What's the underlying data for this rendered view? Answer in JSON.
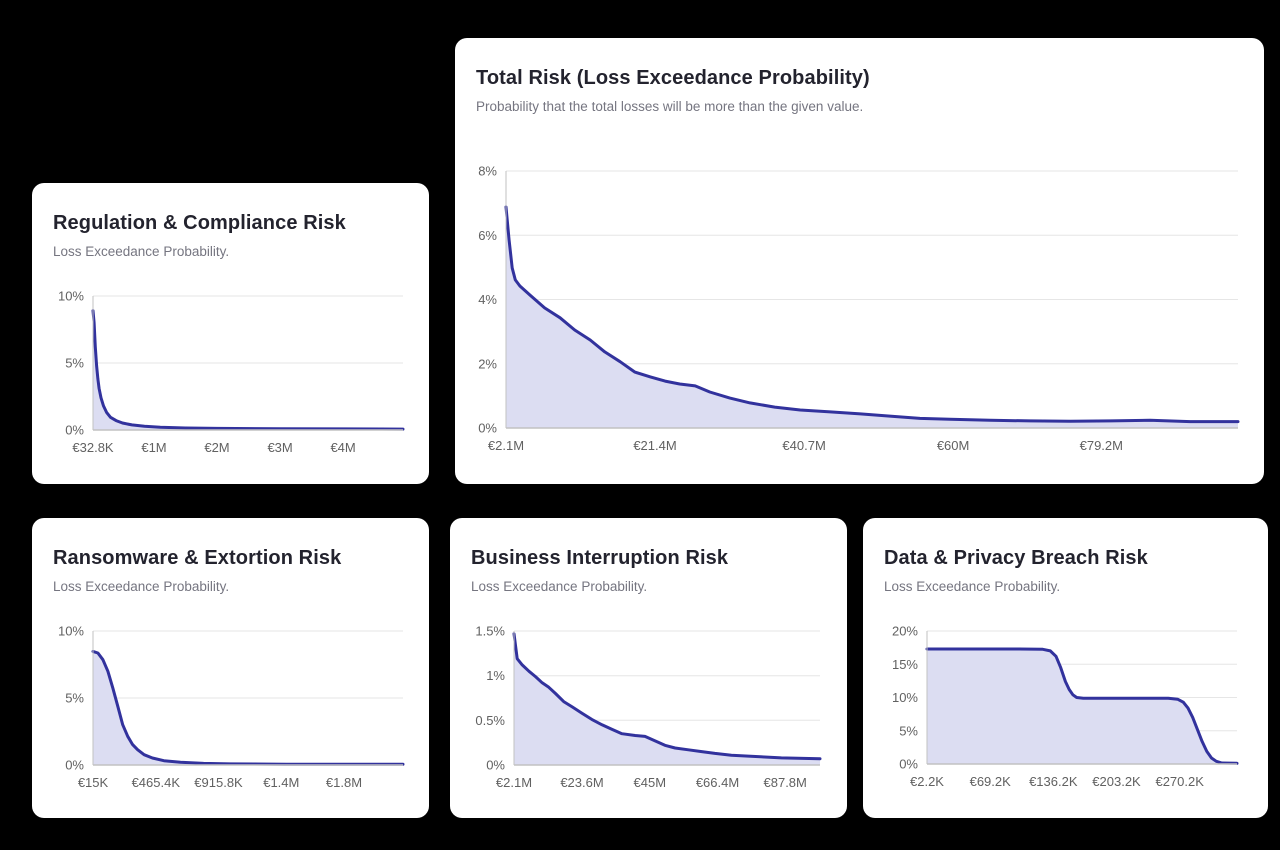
{
  "page": {
    "background": "#000000"
  },
  "theme": {
    "card_background": "#ffffff",
    "title_color": "#23232e",
    "subtitle_color": "#757580",
    "axis_label_color": "#616161",
    "grid_color": "#e6e6e6",
    "axis_line_color": "#c2c2c2",
    "line_color": "#32329d",
    "fill_color": "#dcddf2"
  },
  "chart_data": [
    {
      "id": "regulation",
      "type": "area",
      "title": "Regulation & Compliance Risk",
      "subtitle": "Loss Exceedance Probability.",
      "xlabel": "",
      "ylabel": "",
      "legend": "none",
      "grid": true,
      "xlim": [
        32800,
        4950000
      ],
      "ylim": [
        0,
        10
      ],
      "y_ticks": [
        {
          "value": 0,
          "label": "0%"
        },
        {
          "value": 5,
          "label": "5%"
        },
        {
          "value": 10,
          "label": "10%"
        }
      ],
      "x_ticks": [
        {
          "value": 32800,
          "label": "€32.8K"
        },
        {
          "value": 1000000,
          "label": "€1M"
        },
        {
          "value": 2000000,
          "label": "€2M"
        },
        {
          "value": 3000000,
          "label": "€3M"
        },
        {
          "value": 4000000,
          "label": "€4M"
        }
      ],
      "points": [
        [
          32800,
          8.9
        ],
        [
          50000,
          8.0
        ],
        [
          70000,
          6.2
        ],
        [
          90000,
          4.8
        ],
        [
          110000,
          3.8
        ],
        [
          130000,
          3.1
        ],
        [
          160000,
          2.4
        ],
        [
          200000,
          1.8
        ],
        [
          250000,
          1.3
        ],
        [
          310000,
          0.95
        ],
        [
          400000,
          0.7
        ],
        [
          500000,
          0.52
        ],
        [
          650000,
          0.38
        ],
        [
          850000,
          0.28
        ],
        [
          1100000,
          0.2
        ],
        [
          1500000,
          0.15
        ],
        [
          2000000,
          0.12
        ],
        [
          3000000,
          0.09
        ],
        [
          4000000,
          0.08
        ],
        [
          4950000,
          0.07
        ]
      ]
    },
    {
      "id": "total",
      "type": "area",
      "title": "Total Risk (Loss Exceedance Probability)",
      "subtitle": "Probability that the total losses will be more than the given value.",
      "xlabel": "",
      "ylabel": "",
      "legend": "none",
      "grid": true,
      "xlim": [
        2100000,
        96900000
      ],
      "ylim": [
        0,
        8
      ],
      "y_ticks": [
        {
          "value": 0,
          "label": "0%"
        },
        {
          "value": 2,
          "label": "2%"
        },
        {
          "value": 4,
          "label": "4%"
        },
        {
          "value": 6,
          "label": "6%"
        },
        {
          "value": 8,
          "label": "8%"
        }
      ],
      "x_ticks": [
        {
          "value": 2100000,
          "label": "€2.1M"
        },
        {
          "value": 21400000,
          "label": "€21.4M"
        },
        {
          "value": 40700000,
          "label": "€40.7M"
        },
        {
          "value": 60000000,
          "label": "€60M"
        },
        {
          "value": 79200000,
          "label": "€79.2M"
        }
      ],
      "points": [
        [
          2100000,
          6.88
        ],
        [
          2500000,
          5.85
        ],
        [
          2900000,
          4.98
        ],
        [
          3300000,
          4.61
        ],
        [
          3900000,
          4.42
        ],
        [
          5200000,
          4.14
        ],
        [
          7100000,
          3.74
        ],
        [
          9100000,
          3.43
        ],
        [
          11000000,
          3.05
        ],
        [
          13000000,
          2.74
        ],
        [
          14900000,
          2.37
        ],
        [
          16900000,
          2.06
        ],
        [
          18800000,
          1.74
        ],
        [
          20800000,
          1.59
        ],
        [
          22700000,
          1.46
        ],
        [
          24600000,
          1.37
        ],
        [
          26600000,
          1.31
        ],
        [
          28500000,
          1.12
        ],
        [
          31100000,
          0.93
        ],
        [
          33700000,
          0.78
        ],
        [
          36900000,
          0.65
        ],
        [
          40200000,
          0.56
        ],
        [
          44100000,
          0.5
        ],
        [
          48000000,
          0.44
        ],
        [
          51800000,
          0.37
        ],
        [
          55700000,
          0.3
        ],
        [
          59600000,
          0.27
        ],
        [
          64800000,
          0.24
        ],
        [
          70000000,
          0.22
        ],
        [
          75200000,
          0.21
        ],
        [
          80400000,
          0.22
        ],
        [
          85500000,
          0.24
        ],
        [
          90700000,
          0.2
        ],
        [
          96900000,
          0.2
        ]
      ]
    },
    {
      "id": "ransomware",
      "type": "area",
      "title": "Ransomware & Extortion Risk",
      "subtitle": "Loss Exceedance Probability.",
      "xlabel": "",
      "ylabel": "",
      "legend": "none",
      "grid": true,
      "xlim": [
        15000,
        2240000
      ],
      "ylim": [
        0,
        10
      ],
      "y_ticks": [
        {
          "value": 0,
          "label": "0%"
        },
        {
          "value": 5,
          "label": "5%"
        },
        {
          "value": 10,
          "label": "10%"
        }
      ],
      "x_ticks": [
        {
          "value": 15000,
          "label": "€15K"
        },
        {
          "value": 465400,
          "label": "€465.4K"
        },
        {
          "value": 915800,
          "label": "€915.8K"
        },
        {
          "value": 1366200,
          "label": "€1.4M"
        },
        {
          "value": 1816600,
          "label": "€1.8M"
        }
      ],
      "points": [
        [
          15000,
          8.48
        ],
        [
          50000,
          8.36
        ],
        [
          86000,
          7.86
        ],
        [
          122000,
          6.99
        ],
        [
          157000,
          5.75
        ],
        [
          193000,
          4.38
        ],
        [
          228000,
          3.01
        ],
        [
          264000,
          2.14
        ],
        [
          299000,
          1.52
        ],
        [
          335000,
          1.14
        ],
        [
          382000,
          0.77
        ],
        [
          441000,
          0.52
        ],
        [
          524000,
          0.32
        ],
        [
          643000,
          0.2
        ],
        [
          809000,
          0.12
        ],
        [
          998000,
          0.08
        ],
        [
          1400000,
          0.06
        ],
        [
          1800000,
          0.06
        ],
        [
          2240000,
          0.06
        ]
      ]
    },
    {
      "id": "business",
      "type": "area",
      "title": "Business Interruption Risk",
      "subtitle": "Loss Exceedance Probability.",
      "xlabel": "",
      "ylabel": "",
      "legend": "none",
      "grid": true,
      "xlim": [
        2100000,
        98800000
      ],
      "ylim": [
        0,
        1.5
      ],
      "y_ticks": [
        {
          "value": 0,
          "label": "0%"
        },
        {
          "value": 0.5,
          "label": "0.5%"
        },
        {
          "value": 1,
          "label": "1%"
        },
        {
          "value": 1.5,
          "label": "1.5%"
        }
      ],
      "x_ticks": [
        {
          "value": 2100000,
          "label": "€2.1M"
        },
        {
          "value": 23600000,
          "label": "€23.6M"
        },
        {
          "value": 45000000,
          "label": "€45M"
        },
        {
          "value": 66400000,
          "label": "€66.4M"
        },
        {
          "value": 87800000,
          "label": "€87.8M"
        }
      ],
      "points": [
        [
          2100000,
          1.47
        ],
        [
          3100000,
          1.19
        ],
        [
          4700000,
          1.12
        ],
        [
          6800000,
          1.05
        ],
        [
          8900000,
          0.99
        ],
        [
          11000000,
          0.92
        ],
        [
          13100000,
          0.87
        ],
        [
          15200000,
          0.8
        ],
        [
          17800000,
          0.71
        ],
        [
          20500000,
          0.65
        ],
        [
          23600000,
          0.58
        ],
        [
          26700000,
          0.51
        ],
        [
          29900000,
          0.45
        ],
        [
          33000000,
          0.4
        ],
        [
          36200000,
          0.35
        ],
        [
          40400000,
          0.33
        ],
        [
          43500000,
          0.32
        ],
        [
          46700000,
          0.27
        ],
        [
          49800000,
          0.22
        ],
        [
          53000000,
          0.19
        ],
        [
          57200000,
          0.17
        ],
        [
          61400000,
          0.15
        ],
        [
          65600000,
          0.13
        ],
        [
          70800000,
          0.11
        ],
        [
          76100000,
          0.1
        ],
        [
          81300000,
          0.09
        ],
        [
          86600000,
          0.08
        ],
        [
          98800000,
          0.07
        ]
      ]
    },
    {
      "id": "data_privacy",
      "type": "area",
      "title": "Data & Privacy Breach Risk",
      "subtitle": "Loss Exceedance Probability.",
      "xlabel": "",
      "ylabel": "",
      "legend": "none",
      "grid": true,
      "xlim": [
        2200,
        331000
      ],
      "ylim": [
        0,
        20
      ],
      "y_ticks": [
        {
          "value": 0,
          "label": "0%"
        },
        {
          "value": 5,
          "label": "5%"
        },
        {
          "value": 10,
          "label": "10%"
        },
        {
          "value": 15,
          "label": "15%"
        },
        {
          "value": 20,
          "label": "20%"
        }
      ],
      "x_ticks": [
        {
          "value": 2200,
          "label": "€2.2K"
        },
        {
          "value": 69200,
          "label": "€69.2K"
        },
        {
          "value": 136200,
          "label": "€136.2K"
        },
        {
          "value": 203200,
          "label": "€203.2K"
        },
        {
          "value": 270200,
          "label": "€270.2K"
        }
      ],
      "points": [
        [
          2200,
          17.3
        ],
        [
          100000,
          17.3
        ],
        [
          125000,
          17.25
        ],
        [
          133000,
          17.0
        ],
        [
          139000,
          16.2
        ],
        [
          144000,
          14.5
        ],
        [
          149000,
          12.4
        ],
        [
          153000,
          11.2
        ],
        [
          157000,
          10.4
        ],
        [
          161000,
          10.0
        ],
        [
          168000,
          9.9
        ],
        [
          258000,
          9.9
        ],
        [
          268000,
          9.75
        ],
        [
          274000,
          9.3
        ],
        [
          279000,
          8.4
        ],
        [
          284000,
          7.0
        ],
        [
          289000,
          5.2
        ],
        [
          294000,
          3.4
        ],
        [
          299000,
          1.9
        ],
        [
          304000,
          0.9
        ],
        [
          309000,
          0.4
        ],
        [
          315000,
          0.15
        ],
        [
          331000,
          0.1
        ]
      ]
    }
  ]
}
